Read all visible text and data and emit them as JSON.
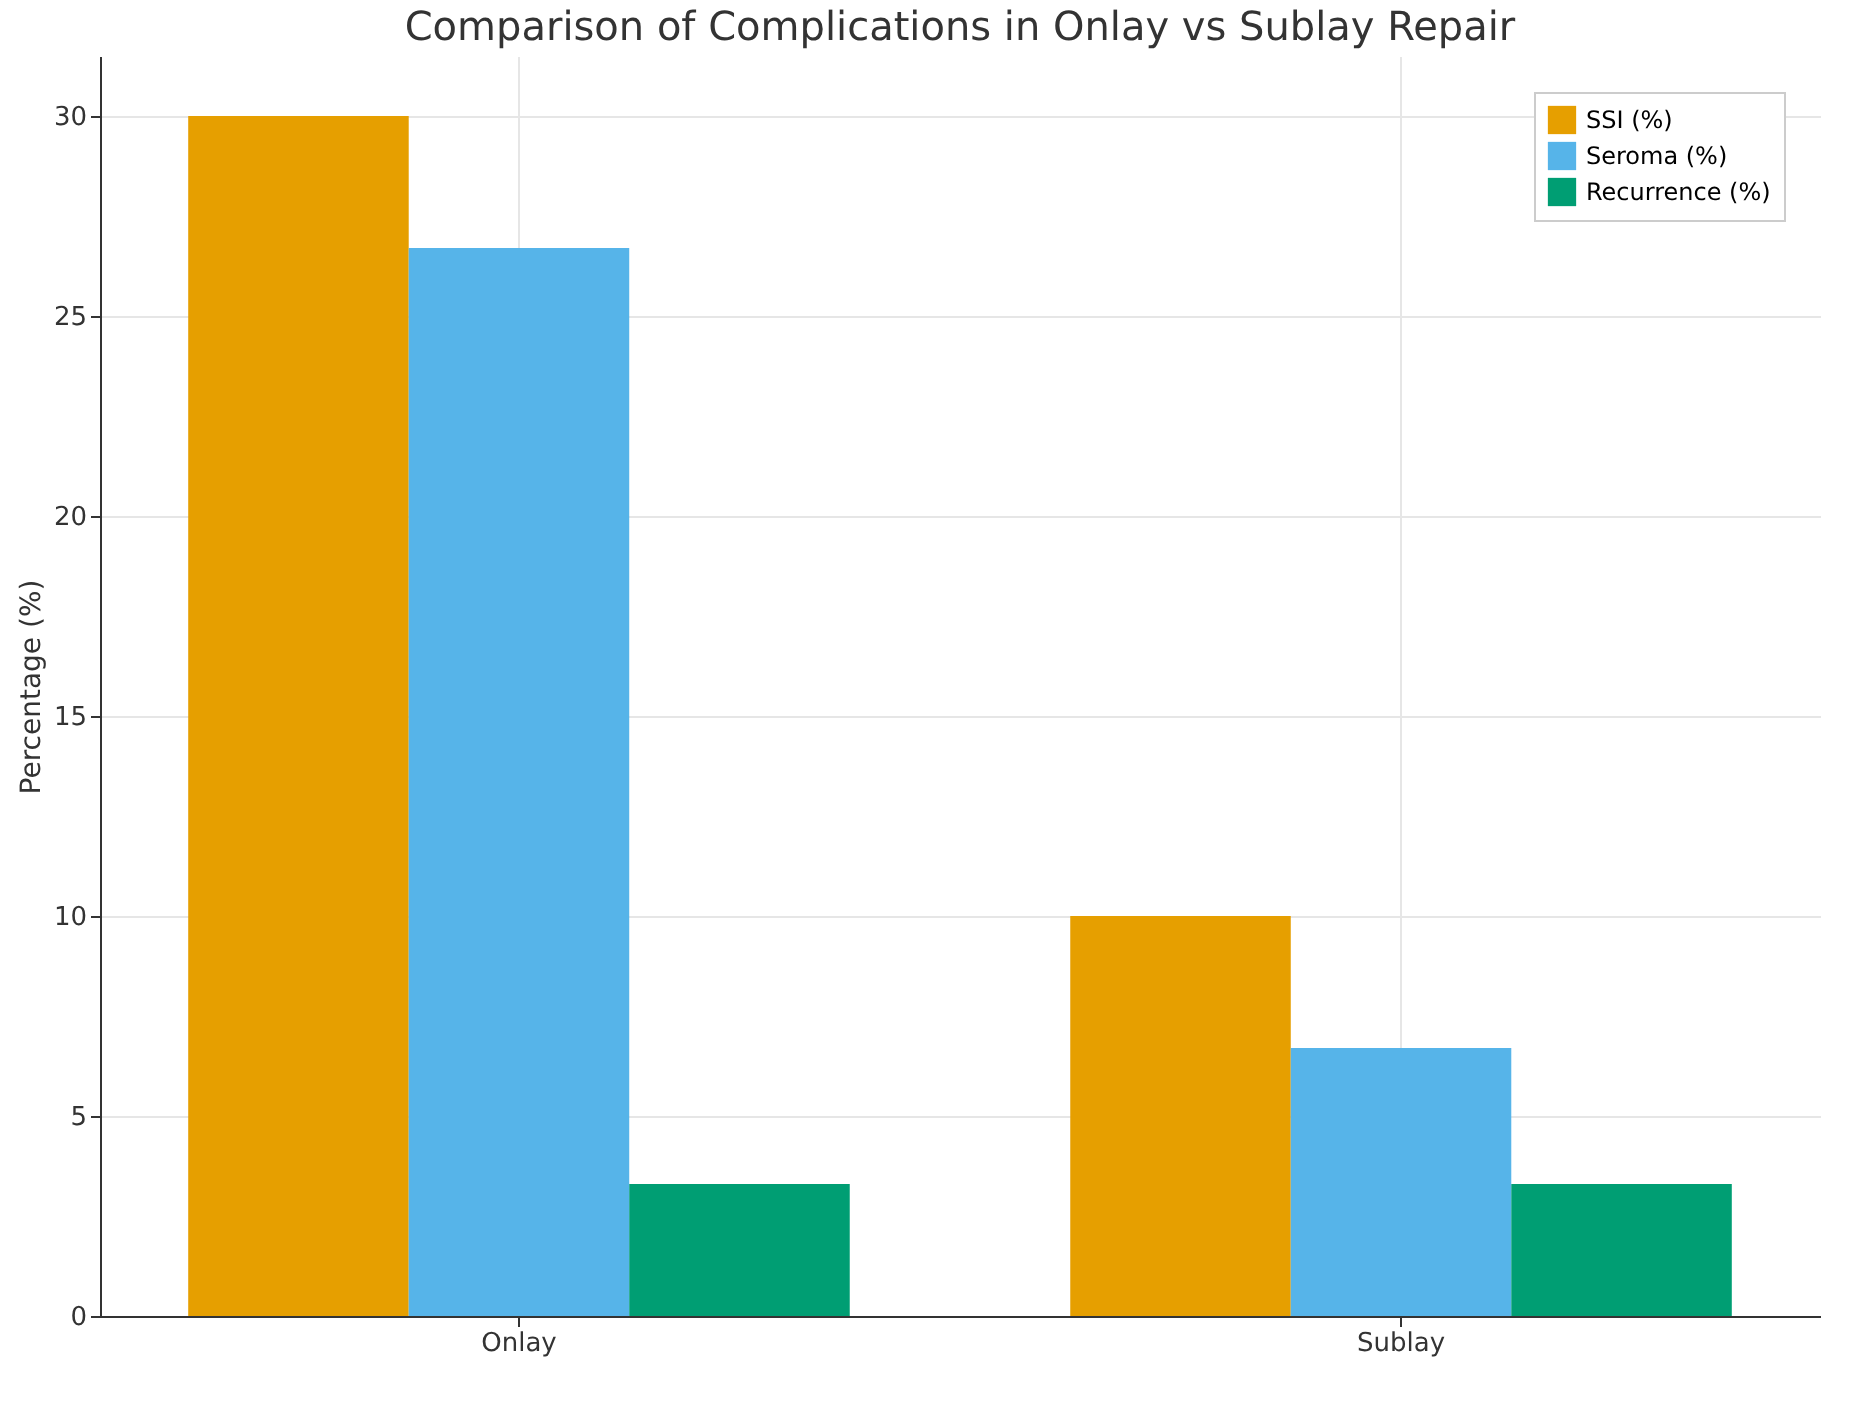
{
  "chart_data": {
    "type": "bar",
    "title": "Comparison of Complications in Onlay vs Sublay Repair",
    "ylabel": "Percentage (%)",
    "categories": [
      "Onlay",
      "Sublay"
    ],
    "series": [
      {
        "name": "SSI (%)",
        "color": "#e69f00",
        "values": [
          30,
          10
        ]
      },
      {
        "name": "Seroma (%)",
        "color": "#56b4e9",
        "values": [
          26.7,
          6.7
        ]
      },
      {
        "name": "Recurrence (%)",
        "color": "#009e73",
        "values": [
          3.3,
          3.3
        ]
      }
    ],
    "ylim": [
      0,
      31.5
    ],
    "yticks": [
      0,
      5,
      10,
      15,
      20,
      25,
      30
    ],
    "grid": true,
    "legend": "top right"
  }
}
